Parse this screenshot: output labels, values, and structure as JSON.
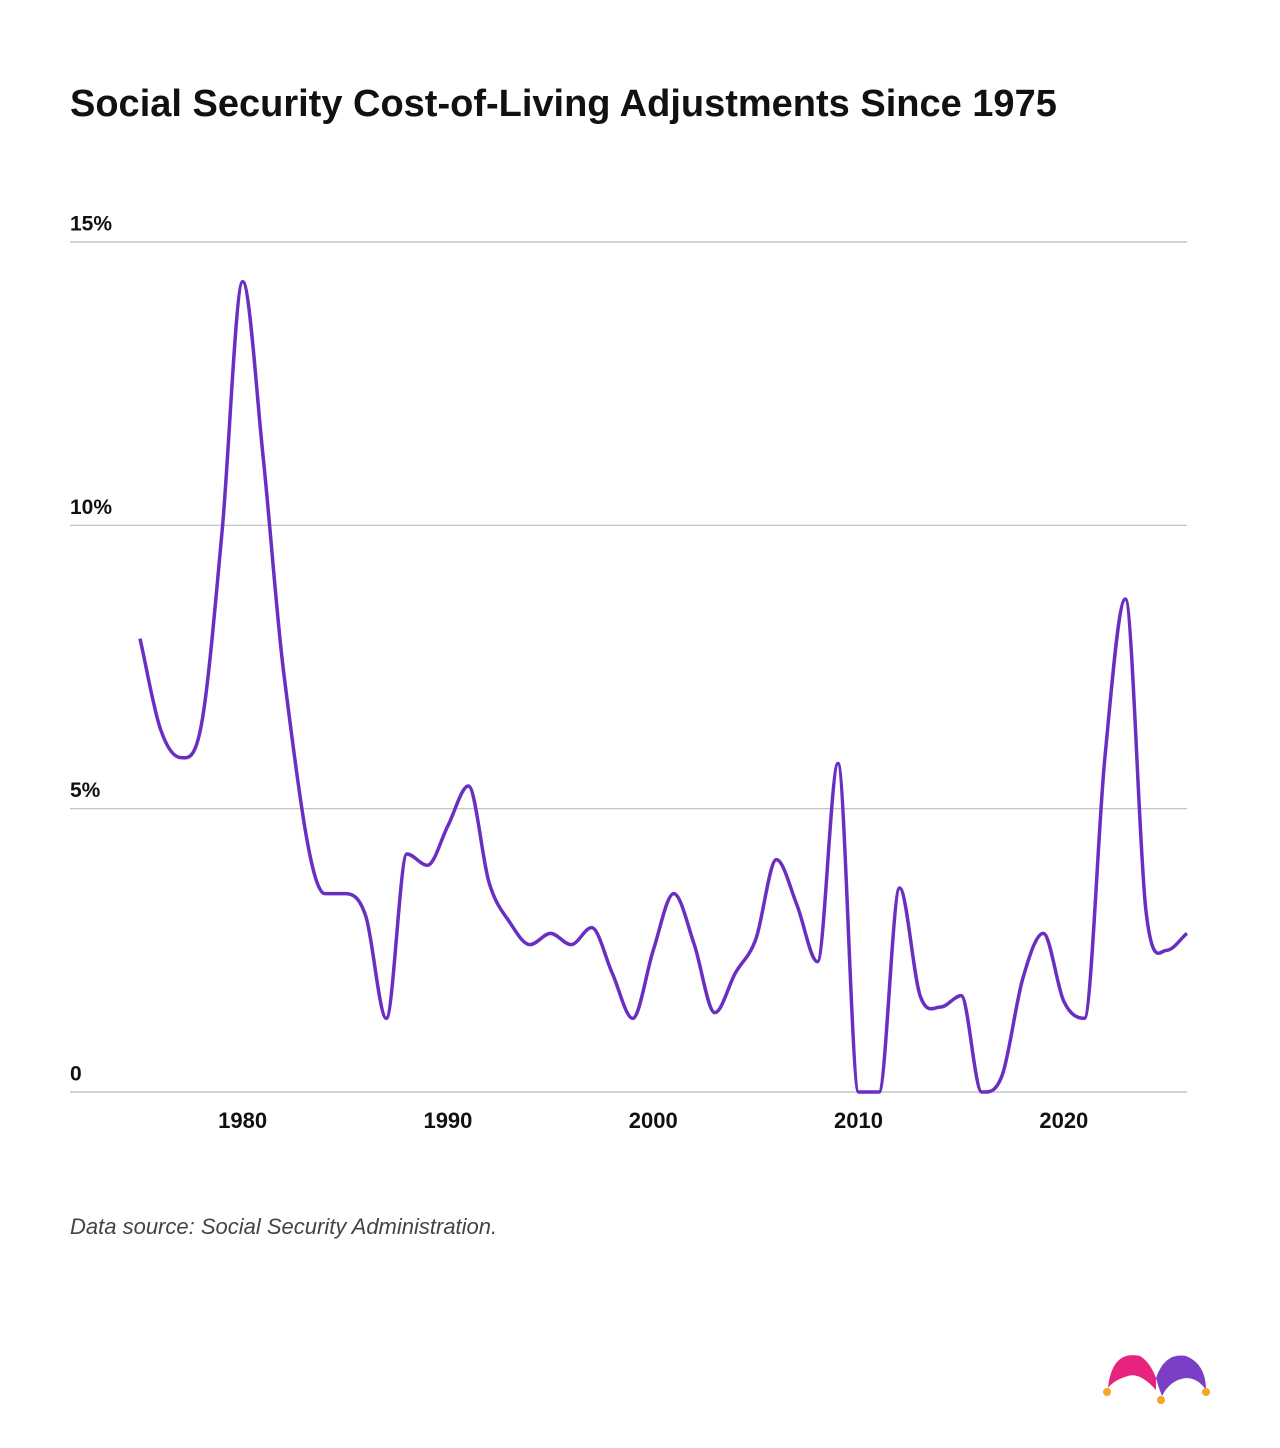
{
  "chart_data": {
    "type": "line",
    "title": "Social Security Cost-of-Living Adjustments Since 1975",
    "source": "Data source: Social Security Administration.",
    "x": [
      1975,
      1976,
      1977,
      1978,
      1979,
      1980,
      1981,
      1982,
      1984,
      1985,
      1986,
      1987,
      1988,
      1989,
      1990,
      1991,
      1992,
      1993,
      1994,
      1995,
      1996,
      1997,
      1998,
      1999,
      2000,
      2001,
      2002,
      2003,
      2004,
      2005,
      2006,
      2007,
      2008,
      2009,
      2010,
      2011,
      2012,
      2013,
      2014,
      2015,
      2016,
      2017,
      2018,
      2019,
      2020,
      2021,
      2022,
      2023,
      2024,
      2025,
      2026
    ],
    "series": [
      {
        "color": "#6a2fc2",
        "values": [
          8.0,
          6.4,
          5.9,
          6.5,
          9.9,
          14.3,
          11.2,
          7.4,
          3.5,
          3.5,
          3.1,
          1.3,
          4.2,
          4.0,
          4.7,
          5.4,
          3.7,
          3.0,
          2.6,
          2.8,
          2.6,
          2.9,
          2.1,
          1.3,
          2.5,
          3.5,
          2.6,
          1.4,
          2.1,
          2.7,
          4.1,
          3.3,
          2.3,
          5.8,
          0,
          0,
          3.6,
          1.7,
          1.5,
          1.7,
          0,
          0.3,
          2.0,
          2.8,
          1.6,
          1.3,
          5.9,
          8.7,
          3.2,
          2.5,
          2.8
        ]
      }
    ],
    "xlim": [
      1975,
      2026
    ],
    "xticks": [
      1980,
      1990,
      2000,
      2010,
      2020
    ],
    "ylim": [
      0,
      15
    ],
    "yticks": [
      0,
      {
        "value": 5,
        "label": "5%"
      },
      {
        "value": 10,
        "label": "10%"
      },
      {
        "value": 15,
        "label": "15%"
      }
    ],
    "grid": true
  }
}
